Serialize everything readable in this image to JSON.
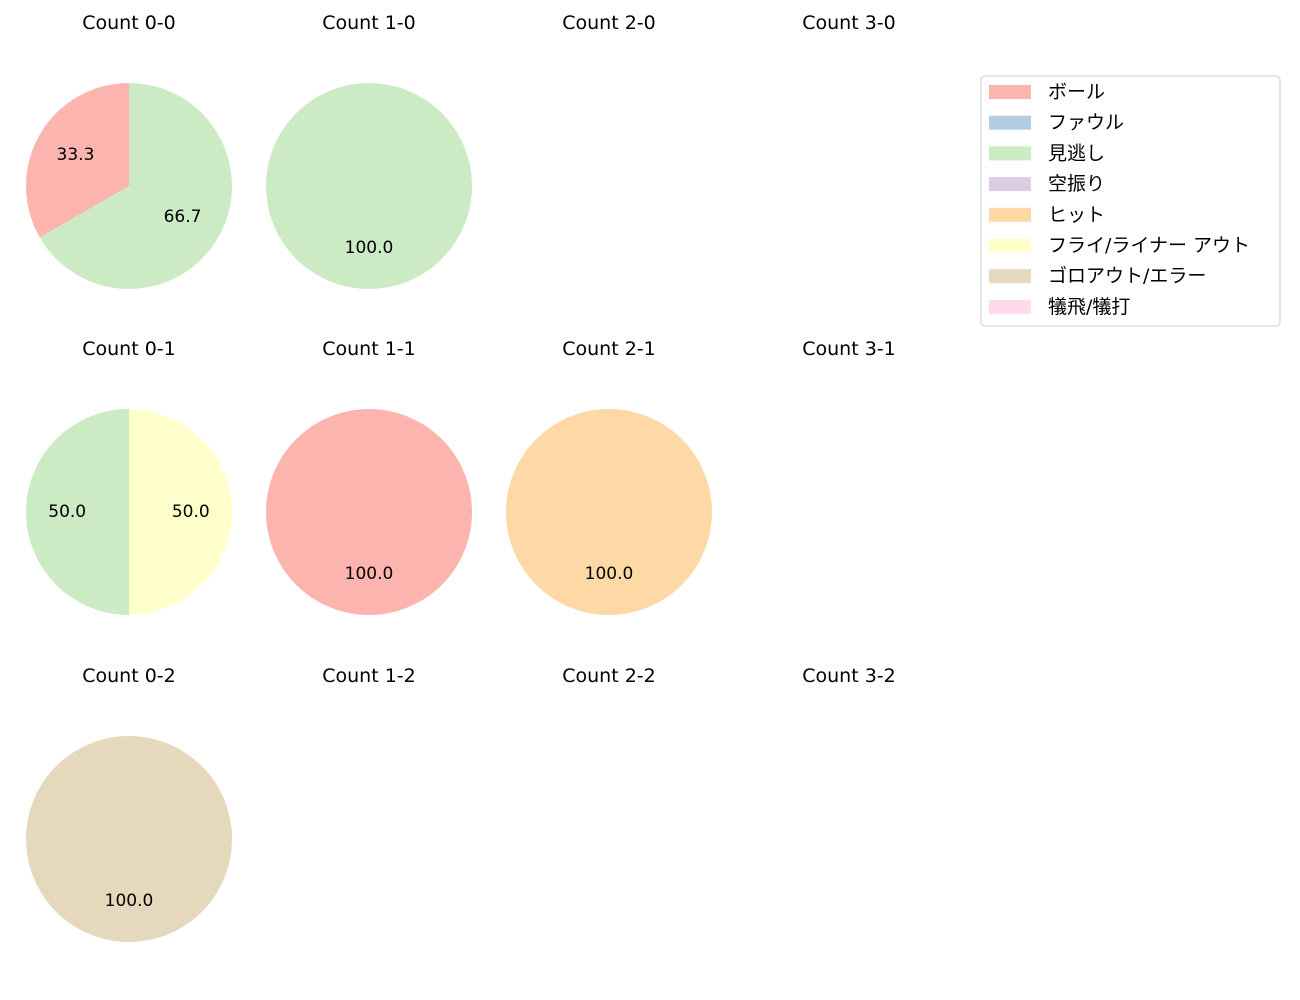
{
  "chart_data": {
    "type": "pie",
    "categories": [
      "ボール",
      "ファウル",
      "見逃し",
      "空振り",
      "ヒット",
      "フライ/ライナー アウト",
      "ゴロアウト/エラー",
      "犠飛/犠打"
    ],
    "colors": [
      "#fbb4ae",
      "#b3cde3",
      "#ccebc5",
      "#decbe4",
      "#fed9a6",
      "#ffffcc",
      "#e5d8bd",
      "#fddaec"
    ],
    "legend_placement": "top-right",
    "panels": [
      {
        "title": "Count 0-0",
        "values": [
          1,
          0,
          2,
          0,
          0,
          0,
          0,
          0
        ],
        "labels": [
          "33.3",
          "",
          "66.7",
          "",
          "",
          "",
          "",
          ""
        ]
      },
      {
        "title": "Count 1-0",
        "values": [
          0,
          0,
          1,
          0,
          0,
          0,
          0,
          0
        ],
        "labels": [
          "",
          "",
          "100.0",
          "",
          "",
          "",
          "",
          ""
        ]
      },
      {
        "title": "Count 2-0",
        "values": [],
        "labels": []
      },
      {
        "title": "Count 3-0",
        "values": [],
        "labels": []
      },
      {
        "title": "Count 0-1",
        "values": [
          0,
          0,
          1,
          0,
          0,
          1,
          0,
          0
        ],
        "labels": [
          "",
          "",
          "50.0",
          "",
          "",
          "50.0",
          "",
          ""
        ]
      },
      {
        "title": "Count 1-1",
        "values": [
          1,
          0,
          0,
          0,
          0,
          0,
          0,
          0
        ],
        "labels": [
          "100.0",
          "",
          "",
          "",
          "",
          "",
          "",
          ""
        ]
      },
      {
        "title": "Count 2-1",
        "values": [
          0,
          0,
          0,
          0,
          1,
          0,
          0,
          0
        ],
        "labels": [
          "",
          "",
          "",
          "",
          "100.0",
          "",
          "",
          ""
        ]
      },
      {
        "title": "Count 3-1",
        "values": [],
        "labels": []
      },
      {
        "title": "Count 0-2",
        "values": [
          0,
          0,
          0,
          0,
          0,
          0,
          1,
          0
        ],
        "labels": [
          "",
          "",
          "",
          "",
          "",
          "",
          "100.0",
          ""
        ]
      },
      {
        "title": "Count 1-2",
        "values": [],
        "labels": []
      },
      {
        "title": "Count 2-2",
        "values": [],
        "labels": []
      },
      {
        "title": "Count 3-2",
        "values": [],
        "labels": []
      }
    ]
  }
}
